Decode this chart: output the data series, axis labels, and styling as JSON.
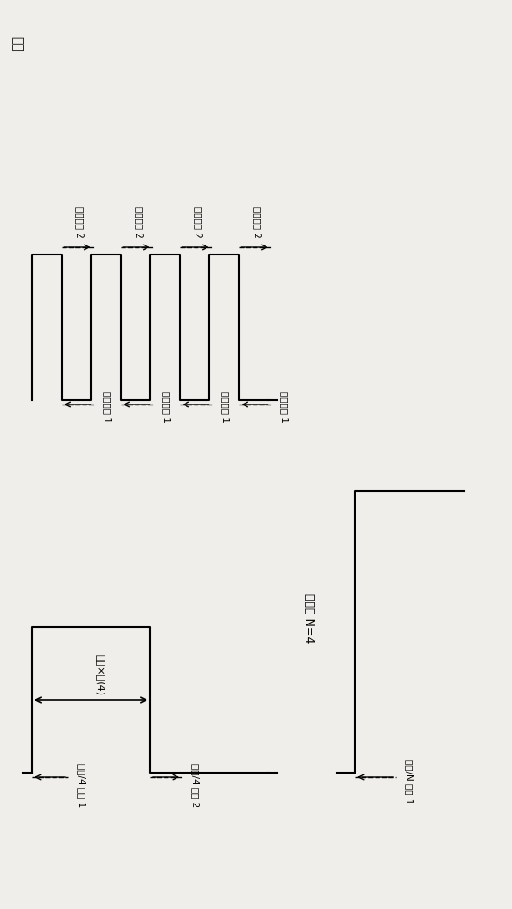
{
  "bg_color": "#f0eeeb",
  "line_color": "#000000",
  "title_top": "时钟",
  "label_clk_div": "时钟除 N=4",
  "label_edge1": "时钟边缘 1",
  "label_edge2": "时钟边缘 2",
  "label_period_x4": "周期×四(4)",
  "label_clk4_edge1": "时钟/4 边缘 1",
  "label_clk4_edge2": "时钟/4 边缘 2",
  "label_clkN_edge1": "时钟/N 边缘 1"
}
